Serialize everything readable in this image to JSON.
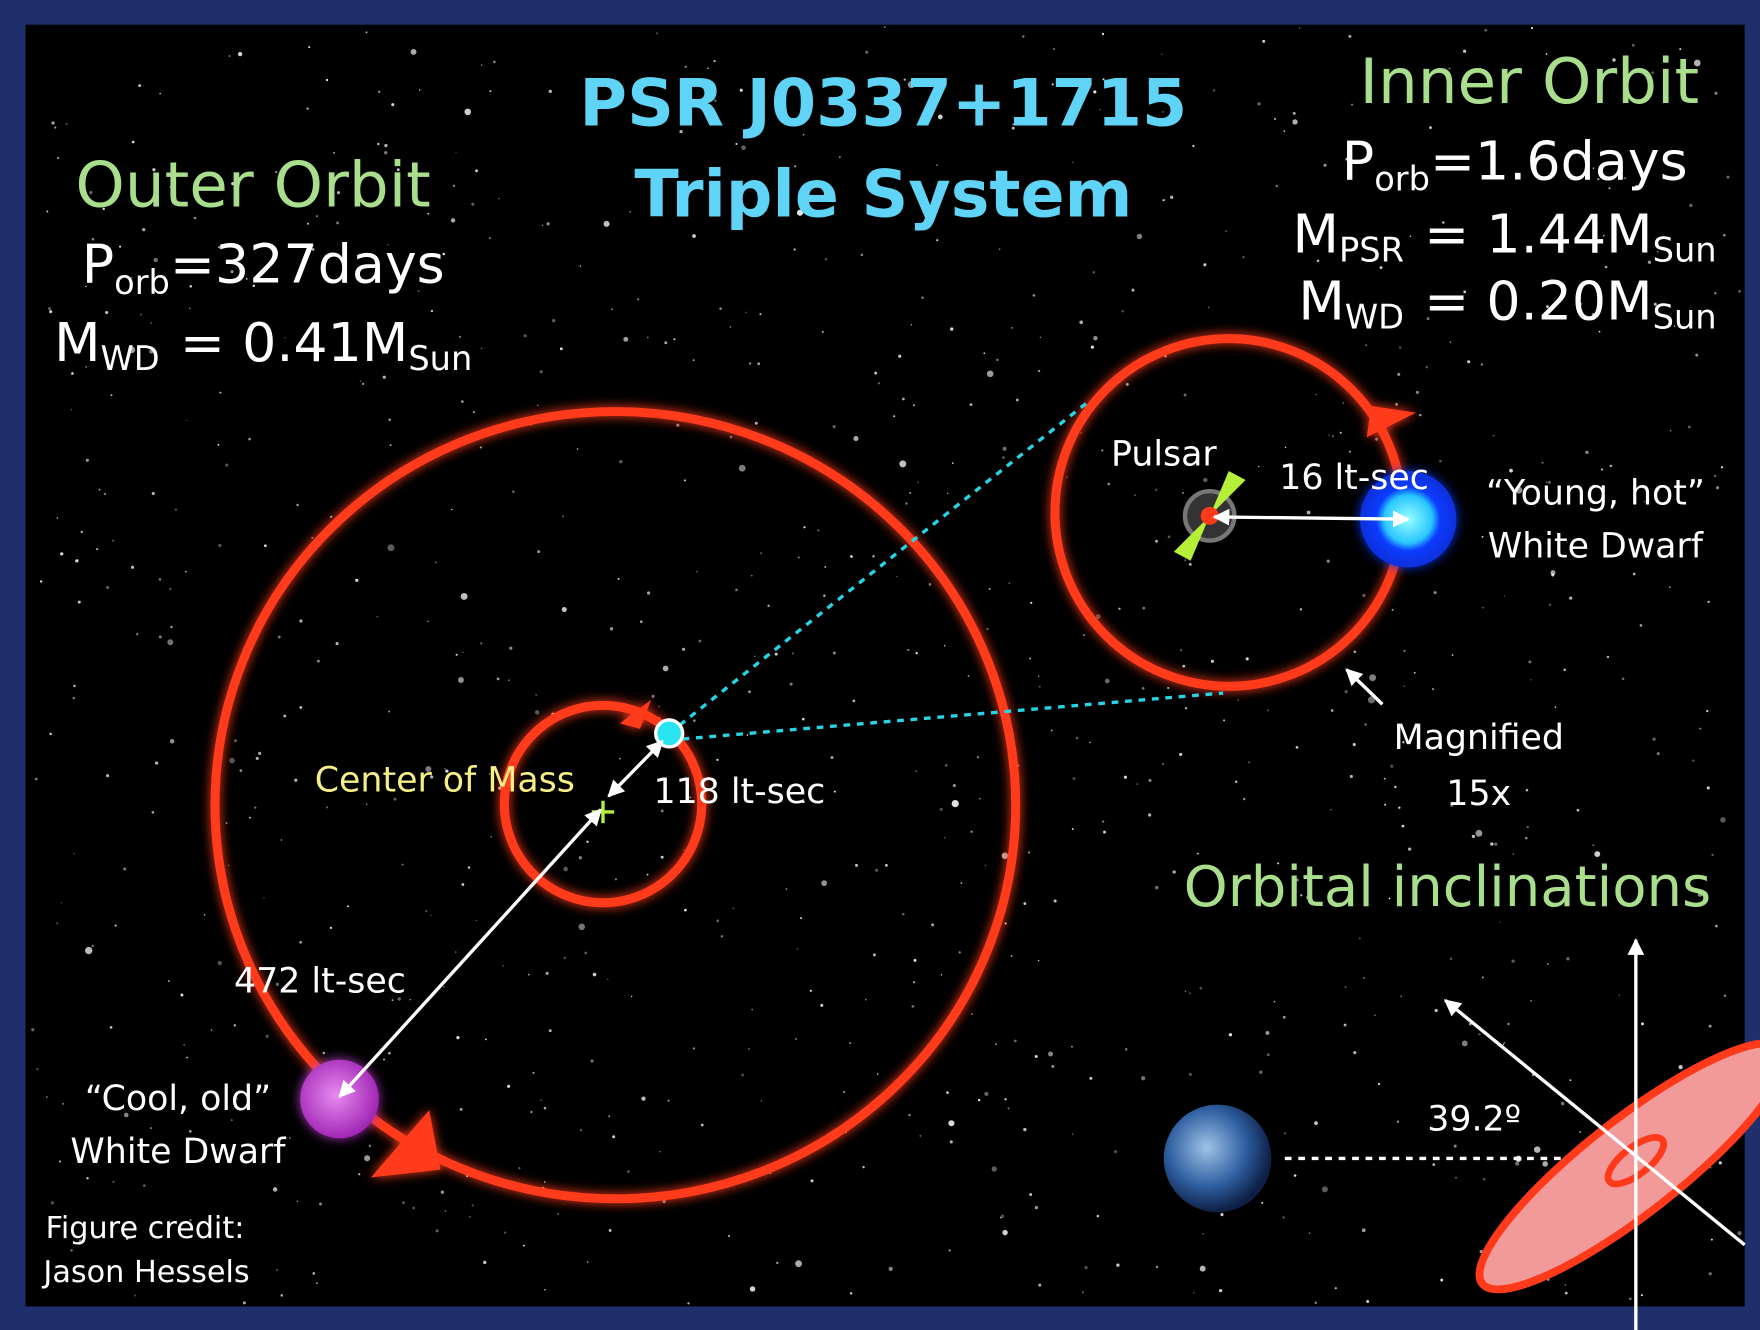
{
  "title": {
    "line1": "PSR J0337+1715",
    "line2": "Triple System"
  },
  "outer_orbit": {
    "heading": "Outer Orbit",
    "period": {
      "symbol": "P",
      "subscript": "orb",
      "value": "=327days"
    },
    "wd_mass": {
      "symbol": "M",
      "subscript": "WD",
      "value": "= 0.41M",
      "unit_subscript": "Sun"
    }
  },
  "inner_orbit": {
    "heading": "Inner Orbit",
    "period": {
      "symbol": "P",
      "subscript": "orb",
      "value": "=1.6days"
    },
    "pulsar_mass": {
      "symbol": "M",
      "subscript": "PSR",
      "value": "= 1.44M",
      "unit_subscript": "Sun"
    },
    "wd_mass": {
      "symbol": "M",
      "subscript": "WD",
      "value": "= 0.20M",
      "unit_subscript": "Sun"
    }
  },
  "labels": {
    "pulsar": "Pulsar",
    "inner_separation": "16 lt-sec",
    "young_wd": [
      "“Young, hot”",
      "White Dwarf"
    ],
    "magnified": [
      "Magnified",
      "15x"
    ],
    "center_of_mass": "Center of Mass",
    "pulsar_offset": "118 lt-sec",
    "outer_separation": "472 lt-sec",
    "cool_wd": [
      "“Cool, old”",
      "White Dwarf"
    ],
    "inclinations_heading": "Orbital inclinations",
    "inclination": "39.2º",
    "credit": [
      "Figure credit:",
      "Jason Hessels"
    ]
  }
}
